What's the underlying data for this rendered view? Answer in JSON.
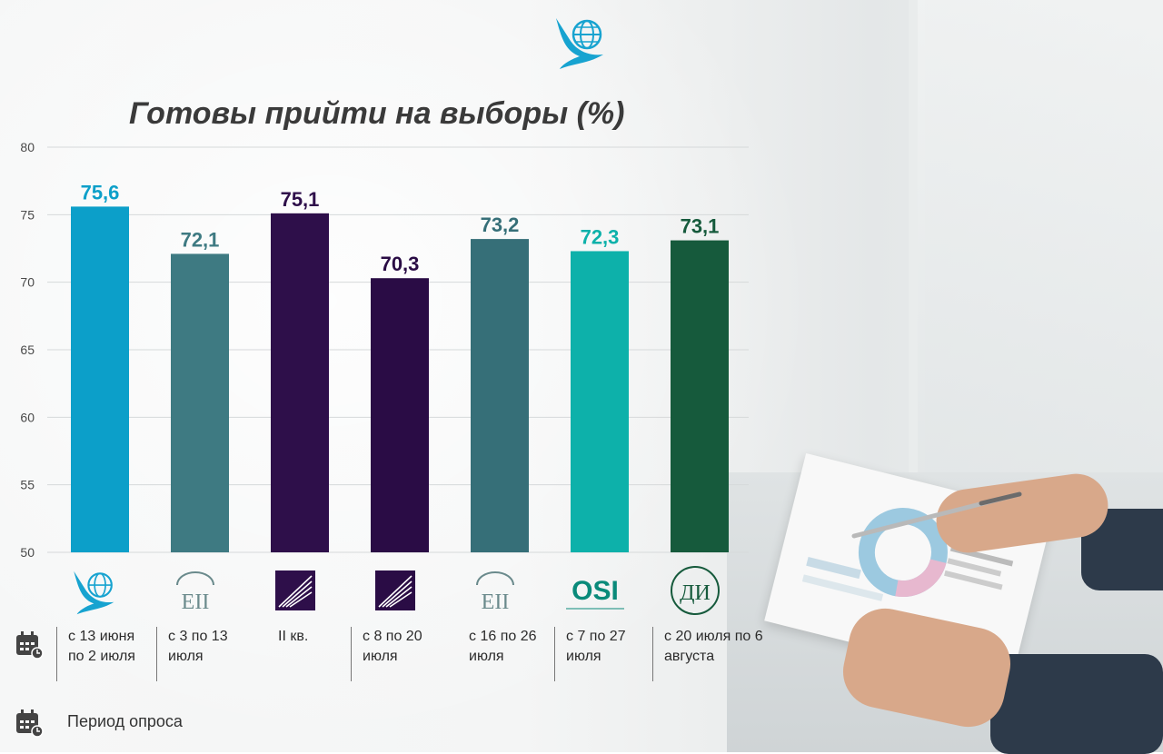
{
  "header": {
    "title": "Готовы прийти на выборы (%)"
  },
  "chart_data": {
    "type": "bar",
    "title": "Готовы прийти на выборы (%)",
    "ylim": [
      50,
      80
    ],
    "yticks": [
      50,
      55,
      60,
      65,
      70,
      75,
      80
    ],
    "grid": true,
    "values": [
      75.6,
      72.1,
      75.1,
      70.3,
      73.2,
      72.3,
      73.1
    ],
    "value_labels": [
      "75,6",
      "72,1",
      "75,1",
      "70,3",
      "73,2",
      "72,3",
      "73,1"
    ],
    "colors": [
      "#0c9fc9",
      "#3e7a82",
      "#2e0f4a",
      "#2a0c45",
      "#366f78",
      "#0db1aa",
      "#165a3c"
    ],
    "label_colors": [
      "#0c9fc9",
      "#3e7a82",
      "#2e0f4a",
      "#2a0c45",
      "#366f78",
      "#0db1aa",
      "#165a3c"
    ]
  },
  "sources": [
    {
      "name": "globe-bird-logo"
    },
    {
      "name": "eii-logo",
      "text": "ΕΙΙ"
    },
    {
      "name": "stripes-logo"
    },
    {
      "name": "stripes-logo"
    },
    {
      "name": "eii-logo",
      "text": "ΕΙΙ"
    },
    {
      "name": "osi-logo",
      "text": "OSI"
    },
    {
      "name": "di-logo",
      "text": "ДИ"
    }
  ],
  "periods": [
    "с 13 июня по 2 июля",
    "с 3 по 13 июля",
    "II кв.",
    "с 8 по 20 июля",
    "с 16 по 26 июля",
    "с 7 по 27 июля",
    "с 20 июля по 6 августа"
  ],
  "legend": {
    "label": "Период опроса",
    "icon": "calendar-clock-icon"
  }
}
